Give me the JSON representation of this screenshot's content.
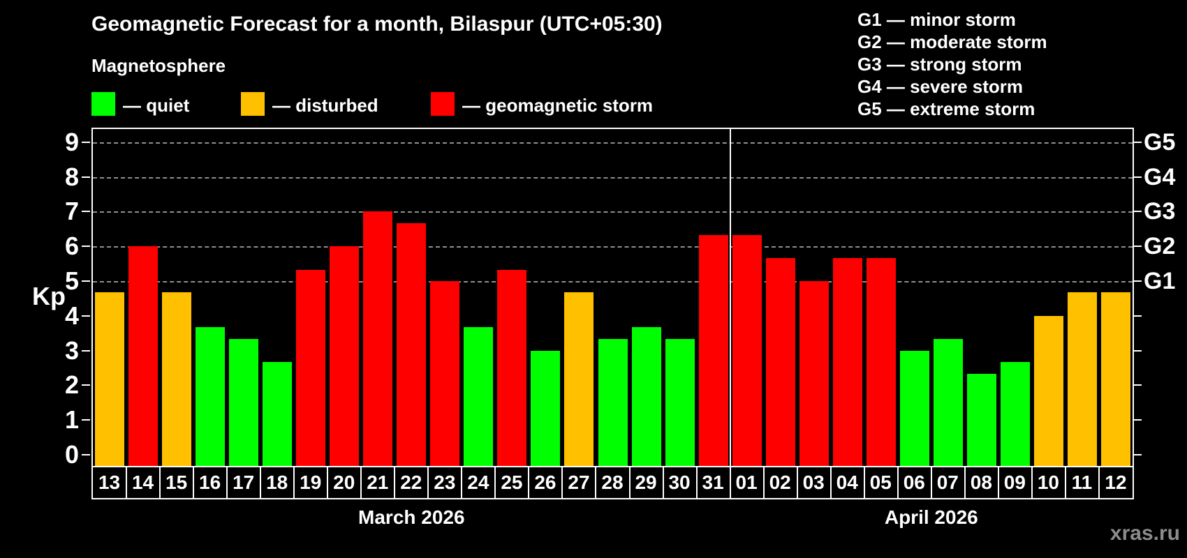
{
  "header": {
    "title": "Geomagnetic Forecast for a month, Bilaspur (UTC+05:30)",
    "subtitle": "Magnetosphere"
  },
  "legend": {
    "items": [
      {
        "key": "quiet",
        "label": "— quiet",
        "color": "#00ff00"
      },
      {
        "key": "disturbed",
        "label": "— disturbed",
        "color": "#ffc000"
      },
      {
        "key": "storm",
        "label": "— geomagnetic storm",
        "color": "#ff0000"
      }
    ]
  },
  "g_scale_legend": {
    "items": [
      "G1 — minor storm",
      "G2 — moderate storm",
      "G3 — strong storm",
      "G4 — severe storm",
      "G5 — extreme storm"
    ]
  },
  "watermark": "xras.ru",
  "chart_data": {
    "type": "bar",
    "title": "Geomagnetic Forecast for a month, Bilaspur (UTC+05:30)",
    "ylabel": "Kp",
    "ylim": [
      0,
      9
    ],
    "y_ticks": [
      0,
      1,
      2,
      3,
      4,
      5,
      6,
      7,
      8,
      9
    ],
    "grid_levels": [
      5,
      6,
      7,
      8,
      9
    ],
    "grid_style": "dashed",
    "right_axis_labels": [
      {
        "label": "G1",
        "value": 5
      },
      {
        "label": "G2",
        "value": 6
      },
      {
        "label": "G3",
        "value": 7
      },
      {
        "label": "G4",
        "value": 8
      },
      {
        "label": "G5",
        "value": 9
      }
    ],
    "status_colors": {
      "quiet": "#00ff00",
      "disturbed": "#ffc000",
      "storm": "#ff0000"
    },
    "months": [
      {
        "label": "March 2026",
        "days": 19
      },
      {
        "label": "April 2026",
        "days": 12
      }
    ],
    "bars": [
      {
        "day": "13",
        "value": 4.67,
        "status": "disturbed"
      },
      {
        "day": "14",
        "value": 6.0,
        "status": "storm"
      },
      {
        "day": "15",
        "value": 4.67,
        "status": "disturbed"
      },
      {
        "day": "16",
        "value": 3.67,
        "status": "quiet"
      },
      {
        "day": "17",
        "value": 3.33,
        "status": "quiet"
      },
      {
        "day": "18",
        "value": 2.67,
        "status": "quiet"
      },
      {
        "day": "19",
        "value": 5.33,
        "status": "storm"
      },
      {
        "day": "20",
        "value": 6.0,
        "status": "storm"
      },
      {
        "day": "21",
        "value": 7.0,
        "status": "storm"
      },
      {
        "day": "22",
        "value": 6.67,
        "status": "storm"
      },
      {
        "day": "23",
        "value": 5.0,
        "status": "storm"
      },
      {
        "day": "24",
        "value": 3.67,
        "status": "quiet"
      },
      {
        "day": "25",
        "value": 5.33,
        "status": "storm"
      },
      {
        "day": "26",
        "value": 3.0,
        "status": "quiet"
      },
      {
        "day": "27",
        "value": 4.67,
        "status": "disturbed"
      },
      {
        "day": "28",
        "value": 3.33,
        "status": "quiet"
      },
      {
        "day": "29",
        "value": 3.67,
        "status": "quiet"
      },
      {
        "day": "30",
        "value": 3.33,
        "status": "quiet"
      },
      {
        "day": "31",
        "value": 6.33,
        "status": "storm"
      },
      {
        "day": "01",
        "value": 6.33,
        "status": "storm"
      },
      {
        "day": "02",
        "value": 5.67,
        "status": "storm"
      },
      {
        "day": "03",
        "value": 5.0,
        "status": "storm"
      },
      {
        "day": "04",
        "value": 5.67,
        "status": "storm"
      },
      {
        "day": "05",
        "value": 5.67,
        "status": "storm"
      },
      {
        "day": "06",
        "value": 3.0,
        "status": "quiet"
      },
      {
        "day": "07",
        "value": 3.33,
        "status": "quiet"
      },
      {
        "day": "08",
        "value": 2.33,
        "status": "quiet"
      },
      {
        "day": "09",
        "value": 2.67,
        "status": "quiet"
      },
      {
        "day": "10",
        "value": 4.0,
        "status": "disturbed"
      },
      {
        "day": "11",
        "value": 4.67,
        "status": "disturbed"
      },
      {
        "day": "12",
        "value": 4.67,
        "status": "disturbed"
      }
    ]
  }
}
